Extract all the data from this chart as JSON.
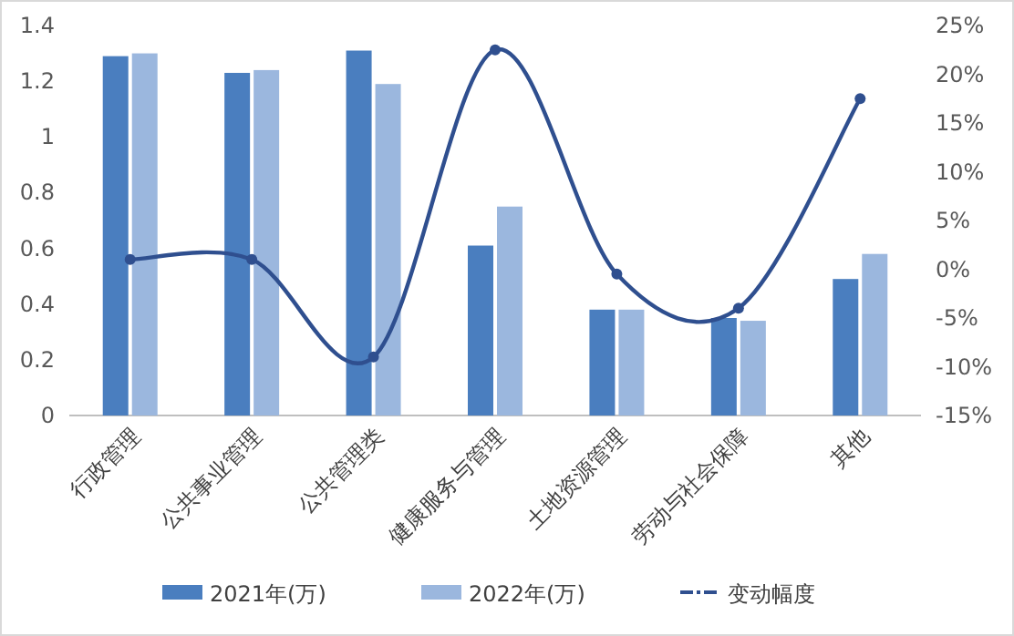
{
  "chart_data": {
    "type": "bar",
    "categories": [
      "行政管理",
      "公共事业管理",
      "公共管理类",
      "健康服务与管理",
      "土地资源管理",
      "劳动与社会保障",
      "其他"
    ],
    "series": [
      {
        "name": "2021年(万)",
        "color": "#4a7ebf",
        "values": [
          1.29,
          1.23,
          1.31,
          0.61,
          0.38,
          0.35,
          0.49
        ]
      },
      {
        "name": "2022年(万)",
        "color": "#9bb7de",
        "values": [
          1.3,
          1.24,
          1.19,
          0.75,
          0.38,
          0.34,
          0.58
        ]
      },
      {
        "name": "变动幅度",
        "type": "line",
        "axis": "y2",
        "color": "#2f4f8f",
        "marker": "circle",
        "values": [
          1,
          1,
          -9,
          22.5,
          -0.5,
          -4,
          17.5
        ]
      }
    ],
    "ylim": [
      0,
      1.4
    ],
    "yticks": [
      0,
      0.2,
      0.4,
      0.6,
      0.8,
      1,
      1.2,
      1.4
    ],
    "y2lim": [
      -15,
      25
    ],
    "y2ticks": [
      {
        "value": -15,
        "label": "-15%"
      },
      {
        "value": -10,
        "label": "-10%"
      },
      {
        "value": -5,
        "label": "-5%"
      },
      {
        "value": 0,
        "label": "0%"
      },
      {
        "value": 5,
        "label": "5%"
      },
      {
        "value": 10,
        "label": "10%"
      },
      {
        "value": 15,
        "label": "15%"
      },
      {
        "value": 20,
        "label": "20%"
      },
      {
        "value": 25,
        "label": "25%"
      }
    ],
    "legend": "bottom"
  }
}
